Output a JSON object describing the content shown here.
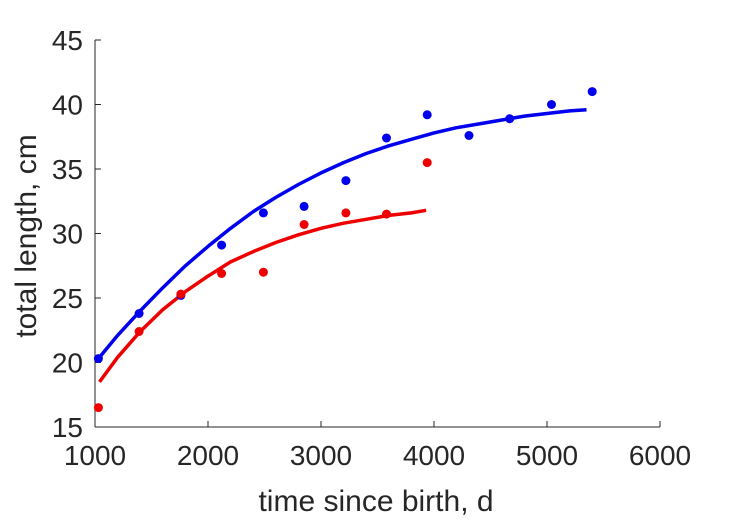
{
  "chart_data": {
    "type": "scatter",
    "xlabel": "time since birth, d",
    "ylabel": "total length, cm",
    "xlim": [
      1000,
      6000
    ],
    "ylim": [
      15,
      45
    ],
    "xticks": [
      1000,
      2000,
      3000,
      4000,
      5000,
      6000
    ],
    "yticks": [
      15,
      20,
      25,
      30,
      35,
      40,
      45
    ],
    "grid": false,
    "series": [
      {
        "color": "#0000ee",
        "points": [
          {
            "x": 1030,
            "y": 20.3
          },
          {
            "x": 1390,
            "y": 23.8
          },
          {
            "x": 1760,
            "y": 25.2
          },
          {
            "x": 2120,
            "y": 29.1
          },
          {
            "x": 2490,
            "y": 31.6
          },
          {
            "x": 2850,
            "y": 32.1
          },
          {
            "x": 3220,
            "y": 34.1
          },
          {
            "x": 3580,
            "y": 37.4
          },
          {
            "x": 3940,
            "y": 39.2
          },
          {
            "x": 4310,
            "y": 37.6
          },
          {
            "x": 4670,
            "y": 38.9
          },
          {
            "x": 5040,
            "y": 40.0
          },
          {
            "x": 5400,
            "y": 41.0
          }
        ],
        "fit_curve": {
          "x": [
            1030,
            1200,
            1400,
            1600,
            1800,
            2000,
            2200,
            2400,
            2600,
            2800,
            3000,
            3200,
            3400,
            3600,
            3800,
            4000,
            4200,
            4400,
            4600,
            4800,
            5000,
            5200,
            5350
          ],
          "y": [
            20.3,
            22.1,
            24.0,
            25.8,
            27.5,
            29.0,
            30.4,
            31.7,
            32.8,
            33.8,
            34.7,
            35.5,
            36.2,
            36.8,
            37.3,
            37.8,
            38.2,
            38.5,
            38.8,
            39.1,
            39.3,
            39.5,
            39.6
          ]
        }
      },
      {
        "color": "#ee0000",
        "points": [
          {
            "x": 1030,
            "y": 16.5
          },
          {
            "x": 1390,
            "y": 22.4
          },
          {
            "x": 1760,
            "y": 25.3
          },
          {
            "x": 2120,
            "y": 26.9
          },
          {
            "x": 2490,
            "y": 27.0
          },
          {
            "x": 2850,
            "y": 30.7
          },
          {
            "x": 3220,
            "y": 31.6
          },
          {
            "x": 3580,
            "y": 31.5
          },
          {
            "x": 3940,
            "y": 35.5
          }
        ],
        "fit_curve": {
          "x": [
            1040,
            1200,
            1400,
            1600,
            1800,
            2000,
            2200,
            2400,
            2600,
            2800,
            3000,
            3200,
            3400,
            3600,
            3800,
            3930
          ],
          "y": [
            18.5,
            20.4,
            22.4,
            24.1,
            25.5,
            26.7,
            27.8,
            28.6,
            29.3,
            29.9,
            30.4,
            30.8,
            31.1,
            31.4,
            31.6,
            31.8
          ]
        }
      }
    ]
  }
}
